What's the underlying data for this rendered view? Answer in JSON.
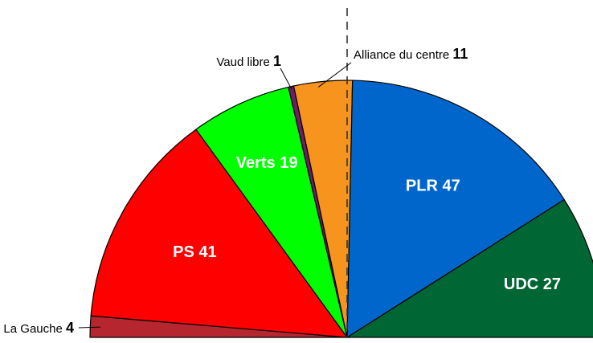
{
  "chart_data": {
    "type": "pie",
    "variant": "hemicycle",
    "total": 150,
    "majority_line": true,
    "slices": [
      {
        "party": "La Gauche",
        "seats": 4,
        "label": "La Gauche",
        "label_position": "outside",
        "color": "#b5262e"
      },
      {
        "party": "PS",
        "seats": 41,
        "label": "PS 41",
        "label_position": "inside",
        "color": "#ff0000"
      },
      {
        "party": "Verts",
        "seats": 19,
        "label": "Verts 19",
        "label_position": "inside",
        "color": "#00ff00"
      },
      {
        "party": "Vaud libre",
        "seats": 1,
        "label": "Vaud libre",
        "label_position": "outside",
        "color": "#6d1e67"
      },
      {
        "party": "Alliance du centre",
        "seats": 11,
        "label": "Alliance du centre",
        "label_position": "outside",
        "color": "#f7941d"
      },
      {
        "party": "PLR",
        "seats": 47,
        "label": "PLR 47",
        "label_position": "inside",
        "color": "#0066cc"
      },
      {
        "party": "UDC",
        "seats": 27,
        "label": "UDC 27",
        "label_position": "inside",
        "color": "#006633"
      }
    ]
  }
}
